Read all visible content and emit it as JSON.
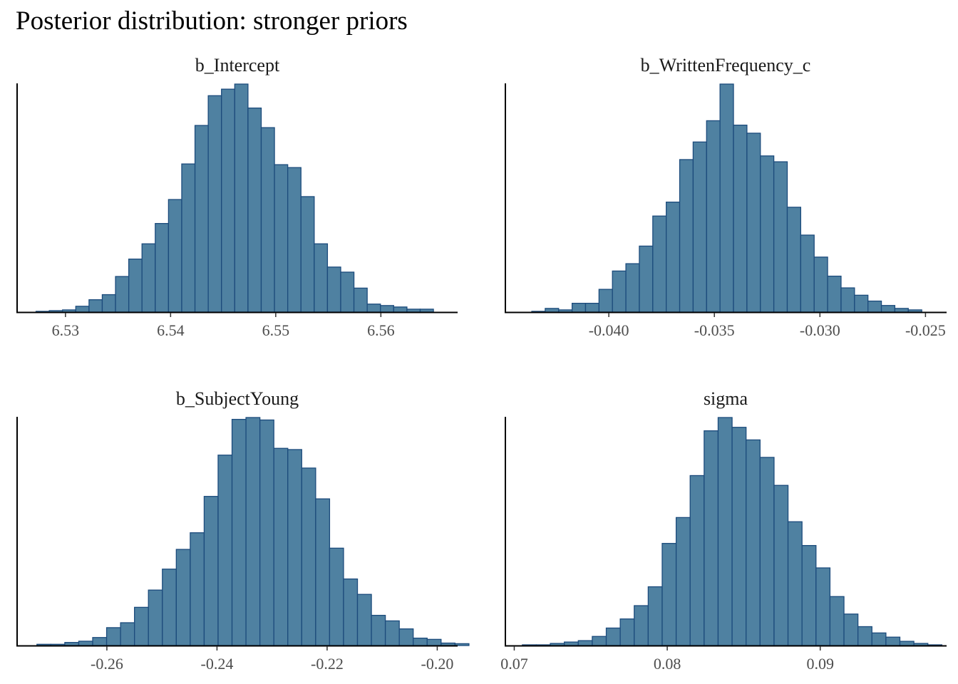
{
  "title": "Posterior distribution: stronger priors",
  "chart_data": [
    {
      "type": "bar",
      "title": "b_Intercept",
      "xlabel": "",
      "ylabel": "",
      "xlim": [
        6.5254,
        6.5673
      ],
      "xticks": [
        6.53,
        6.54,
        6.55,
        6.56
      ],
      "xtick_labels": [
        "6.53",
        "6.54",
        "6.55",
        "6.56"
      ],
      "bin_start": 6.5272,
      "bin_width": 0.00126,
      "counts": [
        1,
        2,
        3,
        8,
        17,
        24,
        49,
        73,
        94,
        122,
        155,
        204,
        257,
        298,
        307,
        314,
        281,
        254,
        203,
        199,
        159,
        94,
        62,
        55,
        33,
        11,
        9,
        7,
        4,
        4
      ],
      "ymax": 314
    },
    {
      "type": "bar",
      "title": "b_WrittenFrequency_c",
      "xlabel": "",
      "ylabel": "",
      "xlim": [
        -0.0449,
        -0.024
      ],
      "xticks": [
        -0.04,
        -0.035,
        -0.03,
        -0.025
      ],
      "xtick_labels": [
        "-0.040",
        "-0.035",
        "-0.030",
        "-0.025"
      ],
      "bin_start": -0.04365,
      "bin_width": 0.000637,
      "counts": [
        1,
        5,
        3,
        12,
        12,
        31,
        56,
        66,
        90,
        131,
        150,
        208,
        232,
        261,
        311,
        255,
        244,
        213,
        205,
        143,
        105,
        75,
        49,
        33,
        23,
        15,
        9,
        5,
        3
      ],
      "ymax": 311
    },
    {
      "type": "bar",
      "title": "b_SubjectYoung",
      "xlabel": "",
      "ylabel": "",
      "xlim": [
        -0.2763,
        -0.1963
      ],
      "xticks": [
        -0.26,
        -0.24,
        -0.22,
        -0.2
      ],
      "xtick_labels": [
        "-0.26",
        "-0.24",
        "-0.22",
        "-0.20"
      ],
      "bin_start": -0.2727,
      "bin_width": 0.002531,
      "counts": [
        2,
        2,
        5,
        7,
        13,
        29,
        37,
        62,
        90,
        124,
        156,
        183,
        242,
        309,
        367,
        370,
        366,
        320,
        318,
        288,
        238,
        158,
        108,
        83,
        49,
        40,
        27,
        12,
        10,
        4,
        3
      ],
      "ymax": 370
    },
    {
      "type": "bar",
      "title": "sigma",
      "xlabel": "",
      "ylabel": "",
      "xlim": [
        0.06942,
        0.09826
      ],
      "xticks": [
        0.07,
        0.08,
        0.09
      ],
      "xtick_labels": [
        "0.07",
        "0.08",
        "0.09"
      ],
      "bin_start": 0.07053,
      "bin_width": 0.000914,
      "counts": [
        1,
        1,
        3,
        5,
        7,
        13,
        25,
        38,
        57,
        84,
        146,
        183,
        243,
        307,
        326,
        312,
        294,
        269,
        229,
        177,
        143,
        111,
        70,
        45,
        27,
        18,
        12,
        6,
        3,
        1
      ],
      "ymax": 326
    }
  ],
  "colors": {
    "bar_fill": "#4f81a1",
    "bar_edge": "#1c4b7c"
  },
  "grid": false
}
